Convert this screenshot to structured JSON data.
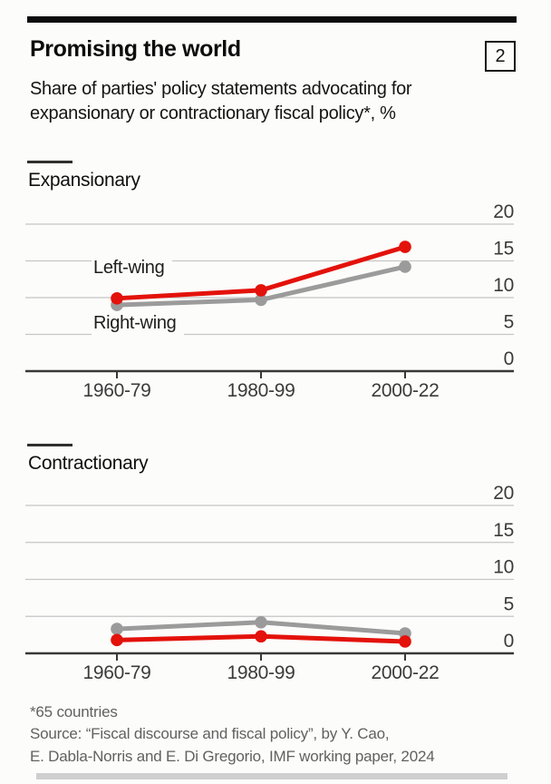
{
  "header": {
    "title": "Promising the world",
    "index_badge": "2",
    "subtitle_line1": "Share of parties' policy statements advocating for",
    "subtitle_line2": "expansionary or contractionary fiscal policy*, %"
  },
  "chart_data": [
    {
      "type": "line",
      "title": "Expansionary",
      "categories": [
        "1960-79",
        "1980-99",
        "2000-22"
      ],
      "series": [
        {
          "name": "Left-wing",
          "color": "#e3120b",
          "values": [
            9.9,
            11.0,
            16.9
          ]
        },
        {
          "name": "Right-wing",
          "color": "#9b9b9b",
          "values": [
            9.0,
            9.7,
            14.2
          ]
        }
      ],
      "ylim": [
        0,
        20
      ],
      "y_ticks": [
        20,
        15,
        10,
        5,
        0
      ],
      "grid": "horizontal",
      "legend": "inline-labels"
    },
    {
      "type": "line",
      "title": "Contractionary",
      "categories": [
        "1960-79",
        "1980-99",
        "2000-22"
      ],
      "series": [
        {
          "name": "Left-wing",
          "color": "#e3120b",
          "values": [
            1.8,
            2.3,
            1.6
          ]
        },
        {
          "name": "Right-wing",
          "color": "#9b9b9b",
          "values": [
            3.3,
            4.2,
            2.7
          ]
        }
      ],
      "ylim": [
        0,
        20
      ],
      "y_ticks": [
        20,
        15,
        10,
        5,
        0
      ],
      "grid": "horizontal",
      "legend": "none"
    }
  ],
  "footer": {
    "footnote": "*65 countries",
    "source_line1": "Source: “Fiscal discourse and fiscal policy”, by Y. Cao,",
    "source_line2": "E. Dabla-Norris and E. Di Gregorio, IMF working paper, 2024"
  }
}
